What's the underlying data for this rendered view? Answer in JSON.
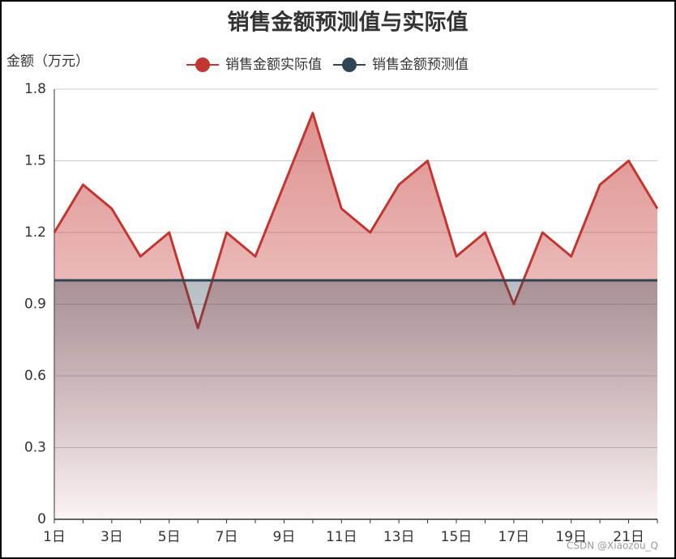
{
  "chart_data": {
    "type": "line",
    "title": "销售金额预测值与实际值",
    "y_label": "金额（万元）",
    "categories": [
      "1日",
      null,
      "3日",
      null,
      "5日",
      null,
      "7日",
      null,
      "9日",
      null,
      "11日",
      null,
      "13日",
      null,
      "15日",
      null,
      "17日",
      null,
      "19日",
      null,
      "21日",
      null
    ],
    "series": [
      {
        "name": "销售金额实际值",
        "color": "#c23531",
        "values": [
          1.2,
          1.4,
          1.3,
          1.1,
          1.2,
          0.8,
          1.2,
          1.1,
          1.4,
          1.7,
          1.3,
          1.2,
          1.4,
          1.5,
          1.1,
          1.2,
          0.9,
          1.2,
          1.1,
          1.4,
          1.5,
          1.3
        ]
      },
      {
        "name": "销售金额预测值",
        "color": "#2f4554",
        "values": [
          1,
          1,
          1,
          1,
          1,
          1,
          1,
          1,
          1,
          1,
          1,
          1,
          1,
          1,
          1,
          1,
          1,
          1,
          1,
          1,
          1,
          1
        ]
      }
    ],
    "ylim": [
      0,
      1.8
    ],
    "yticks": [
      0,
      0.3,
      0.6,
      0.9,
      1.2,
      1.5,
      1.8
    ],
    "grid": true,
    "watermark": "CSDN @Xiaozou_Q"
  }
}
